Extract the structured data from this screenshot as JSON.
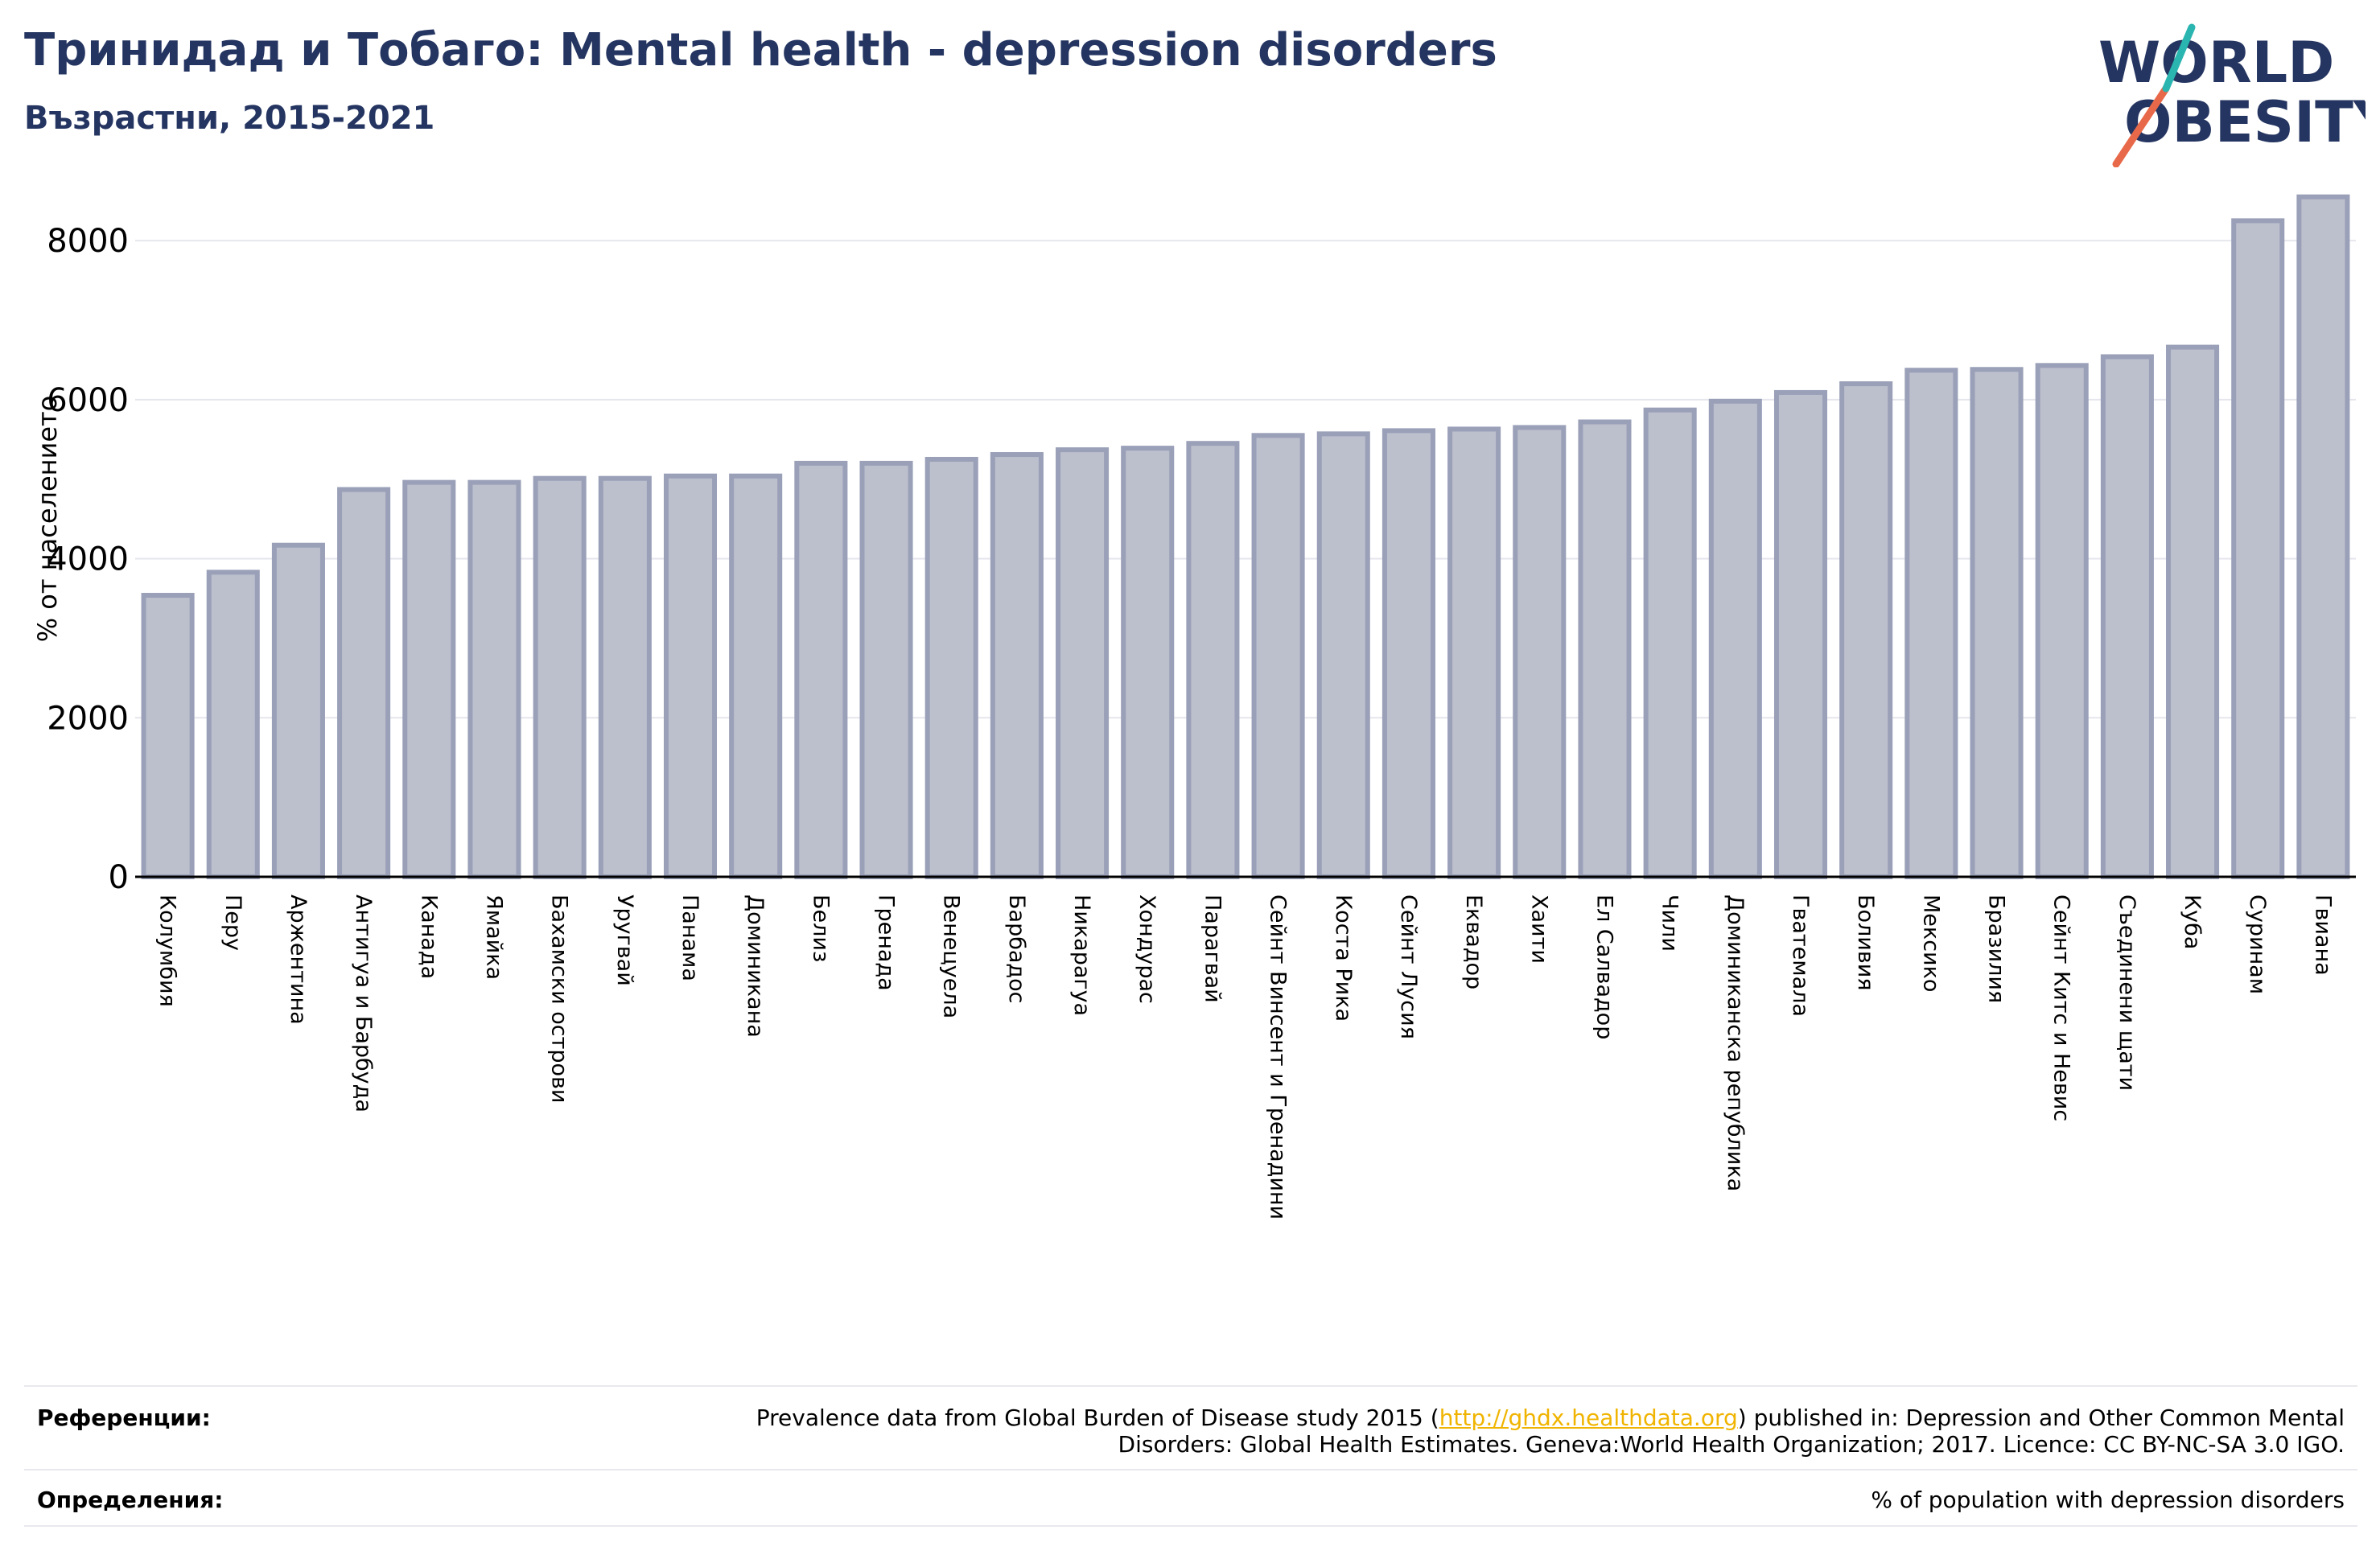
{
  "header": {
    "title": "Тринидад и Тобаго: Mental health - depression disorders",
    "subtitle": "Възрастни, 2015-2021"
  },
  "logo": {
    "line1": "WORLD",
    "line2": "OBESITY",
    "accent_teal": "#2bb5b0",
    "accent_orange": "#e8694a",
    "color": "#253561"
  },
  "colors": {
    "bar_fill": "#bcbfcc",
    "bar_stroke": "#9aa0b8",
    "text_primary": "#253561",
    "axis": "#000000",
    "grid": "#e6e6ee"
  },
  "chart_data": {
    "type": "bar",
    "title": "Тринидад и Тобаго: Mental health - depression disorders",
    "subtitle": "Възрастни, 2015-2021",
    "ylabel": "% от населението",
    "xlabel": "",
    "ylim": [
      0,
      8800
    ],
    "yticks": [
      0,
      2000,
      4000,
      6000,
      8000
    ],
    "grid": true,
    "categories": [
      "Колумбия",
      "Перу",
      "Аржентина",
      "Антигуа и Барбуда",
      "Канада",
      "Ямайка",
      "Бахамски острови",
      "Уругвай",
      "Панама",
      "Доминикана",
      "Белиз",
      "Гренада",
      "Венецуела",
      "Барбадос",
      "Никарагуа",
      "Хондурас",
      "Парагвай",
      "Сейнт Винсент и Гренадини",
      "Коста Рика",
      "Сейнт Лусия",
      "Еквадор",
      "Хаити",
      "Ел Салвадор",
      "Чили",
      "Доминиканска република",
      "Гватемала",
      "Боливия",
      "Мексико",
      "Бразилия",
      "Сейнт Китс и Невис",
      "Съединени щати",
      "Куба",
      "Суринам",
      "Гвиана"
    ],
    "values": [
      3540,
      3830,
      4170,
      4870,
      4960,
      4960,
      5010,
      5010,
      5040,
      5040,
      5200,
      5200,
      5250,
      5310,
      5370,
      5390,
      5450,
      5550,
      5570,
      5610,
      5630,
      5650,
      5720,
      5870,
      5980,
      6090,
      6200,
      6370,
      6380,
      6430,
      6540,
      6660,
      8250,
      8550
    ]
  },
  "footer": {
    "references_label": "Референции:",
    "references_text_1": "Prevalence data from Global Burden of Disease study 2015 (",
    "references_link": "http://ghdx.healthdata.org",
    "references_text_2": ") published in: Depression and Other Common Mental",
    "references_text_3": "Disorders: Global Health Estimates. Geneva:World Health Organization; 2017. Licence: CC BY-NC-SA 3.0 IGO.",
    "definitions_label": "Определения:",
    "definitions_text": "% of population with depression disorders"
  }
}
